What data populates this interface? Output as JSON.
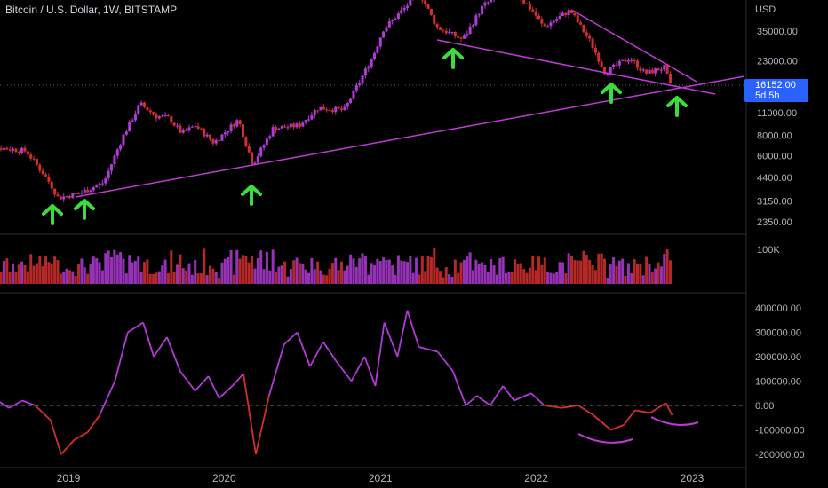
{
  "header": {
    "title": "Bitcoin / U.S. Dollar, 1W, BITSTAMP",
    "currency": "USD"
  },
  "price_tag": {
    "price": "16152.00",
    "countdown": "5d 5h"
  },
  "colors": {
    "up": "#b03bd6",
    "down": "#d32f2f",
    "trendline": "#c03bd6",
    "arrow": "#3ade3a",
    "tag": "#2962ff"
  },
  "chart_data": [
    {
      "type": "line",
      "panel": "price",
      "scale": "log",
      "yticks": [
        "35000.00",
        "23000.00",
        "16152.00",
        "11000.00",
        "8000.00",
        "6000.00",
        "4400.00",
        "3150.00",
        "2350.00"
      ],
      "series": [
        {
          "values": [
            [
              "2018-06-01",
              6500
            ],
            [
              "2018-08-01",
              6700
            ],
            [
              "2018-10-01",
              6400
            ],
            [
              "2018-11-20",
              4300
            ],
            [
              "2018-12-15",
              3300
            ],
            [
              "2019-02-01",
              3500
            ],
            [
              "2019-04-01",
              4100
            ],
            [
              "2019-05-15",
              7800
            ],
            [
              "2019-06-25",
              12500
            ],
            [
              "2019-08-01",
              10500
            ],
            [
              "2019-09-01",
              10200
            ],
            [
              "2019-10-01",
              8200
            ],
            [
              "2019-11-01",
              9200
            ],
            [
              "2019-12-15",
              7200
            ],
            [
              "2020-02-10",
              10000
            ],
            [
              "2020-03-15",
              5300
            ],
            [
              "2020-05-01",
              8800
            ],
            [
              "2020-07-01",
              9200
            ],
            [
              "2020-08-15",
              11800
            ],
            [
              "2020-10-15",
              11400
            ],
            [
              "2020-12-20",
              24000
            ],
            [
              "2021-01-15",
              36000
            ],
            [
              "2021-04-10",
              60000
            ],
            [
              "2021-05-20",
              37000
            ],
            [
              "2021-07-20",
              31000
            ],
            [
              "2021-09-05",
              50000
            ],
            [
              "2021-11-08",
              65000
            ],
            [
              "2022-01-01",
              46000
            ],
            [
              "2022-01-25",
              37000
            ],
            [
              "2022-03-28",
              47000
            ],
            [
              "2022-05-15",
              30000
            ],
            [
              "2022-06-18",
              19500
            ],
            [
              "2022-08-15",
              24000
            ],
            [
              "2022-09-20",
              19200
            ],
            [
              "2022-11-07",
              21000
            ],
            [
              "2022-11-15",
              16152
            ]
          ]
        }
      ],
      "annotations": [
        "9",
        "9",
        "9",
        "9",
        "8",
        "8",
        "8",
        "8"
      ]
    },
    {
      "type": "bar",
      "panel": "volume",
      "yticks": [
        "100K"
      ]
    },
    {
      "type": "line",
      "panel": "oscillator",
      "yticks": [
        "400000.00",
        "300000.00",
        "200000.00",
        "100000.00",
        "0.00",
        "-100000.00",
        "-200000.00"
      ],
      "ylim": [
        -230000,
        410000
      ],
      "series": [
        {
          "values": [
            [
              "2018-06-01",
              0
            ],
            [
              "2018-07-01",
              40000
            ],
            [
              "2018-08-15",
              -10000
            ],
            [
              "2018-09-15",
              20000
            ],
            [
              "2018-10-15",
              0
            ],
            [
              "2018-11-20",
              -60000
            ],
            [
              "2018-12-15",
              -200000
            ],
            [
              "2019-01-15",
              -140000
            ],
            [
              "2019-02-15",
              -110000
            ],
            [
              "2019-03-15",
              -40000
            ],
            [
              "2019-04-20",
              100000
            ],
            [
              "2019-05-20",
              300000
            ],
            [
              "2019-06-25",
              340000
            ],
            [
              "2019-07-20",
              200000
            ],
            [
              "2019-08-20",
              280000
            ],
            [
              "2019-09-20",
              140000
            ],
            [
              "2019-10-25",
              60000
            ],
            [
              "2019-11-25",
              120000
            ],
            [
              "2019-12-20",
              30000
            ],
            [
              "2020-01-20",
              80000
            ],
            [
              "2020-02-15",
              130000
            ],
            [
              "2020-03-15",
              -200000
            ],
            [
              "2020-04-15",
              40000
            ],
            [
              "2020-05-20",
              250000
            ],
            [
              "2020-06-20",
              300000
            ],
            [
              "2020-07-20",
              160000
            ],
            [
              "2020-08-20",
              260000
            ],
            [
              "2020-09-20",
              180000
            ],
            [
              "2020-10-25",
              100000
            ],
            [
              "2020-11-25",
              200000
            ],
            [
              "2020-12-20",
              80000
            ],
            [
              "2021-01-10",
              340000
            ],
            [
              "2021-02-10",
              200000
            ],
            [
              "2021-03-05",
              390000
            ],
            [
              "2021-04-01",
              240000
            ],
            [
              "2021-05-15",
              220000
            ],
            [
              "2021-06-20",
              140000
            ],
            [
              "2021-07-20",
              0
            ],
            [
              "2021-08-15",
              40000
            ],
            [
              "2021-09-15",
              0
            ],
            [
              "2021-10-15",
              80000
            ],
            [
              "2021-11-10",
              20000
            ],
            [
              "2021-12-20",
              50000
            ],
            [
              "2022-01-20",
              0
            ],
            [
              "2022-03-01",
              -10000
            ],
            [
              "2022-04-10",
              0
            ],
            [
              "2022-05-15",
              -40000
            ],
            [
              "2022-06-25",
              -100000
            ],
            [
              "2022-07-25",
              -80000
            ],
            [
              "2022-08-20",
              -20000
            ],
            [
              "2022-09-25",
              -30000
            ],
            [
              "2022-11-01",
              10000
            ],
            [
              "2022-11-15",
              -40000
            ]
          ]
        }
      ]
    }
  ],
  "xaxis": {
    "labels": [
      "2019",
      "2020",
      "2021",
      "2022",
      "2023"
    ]
  }
}
